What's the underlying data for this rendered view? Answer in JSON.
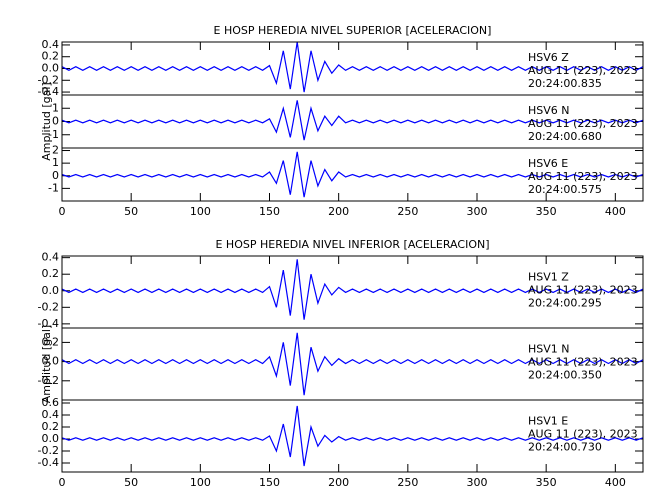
{
  "chart_data": [
    {
      "type": "line",
      "title": "E HOSP HEREDIA NIVEL SUPERIOR [ACELERACION]",
      "ylabel": "Amplitud [gal]",
      "xlim": [
        0,
        420
      ],
      "xticks": [
        0,
        50,
        100,
        150,
        200,
        250,
        300,
        350,
        400
      ],
      "color": "#0000ff",
      "x": [
        0,
        5,
        10,
        15,
        20,
        25,
        30,
        35,
        40,
        45,
        50,
        55,
        60,
        65,
        70,
        75,
        80,
        85,
        90,
        95,
        100,
        105,
        110,
        115,
        120,
        125,
        130,
        135,
        140,
        145,
        150,
        155,
        160,
        165,
        170,
        175,
        180,
        185,
        190,
        195,
        200,
        205,
        210,
        215,
        220,
        225,
        230,
        235,
        240,
        245,
        250,
        255,
        260,
        265,
        270,
        275,
        280,
        285,
        290,
        295,
        300,
        305,
        310,
        315,
        320,
        325,
        330,
        335,
        340,
        345,
        350,
        355,
        360,
        365,
        370,
        375,
        380,
        385,
        390,
        395,
        400,
        405,
        410,
        415,
        420
      ],
      "panels": [
        {
          "station": "HSV6   Z",
          "date": "AUG 11 (223), 2023",
          "time": "20:24:00.835",
          "ylim": [
            -0.45,
            0.45
          ],
          "yticks": [
            -0.4,
            -0.2,
            {
              "value": 0,
              "label": "0.0"
            },
            0.2,
            0.4
          ],
          "values": [
            0.03,
            -0.03,
            0.03,
            -0.03,
            0.03,
            -0.03,
            0.03,
            -0.03,
            0.03,
            -0.03,
            0.03,
            -0.03,
            0.03,
            -0.03,
            0.03,
            -0.03,
            0.03,
            -0.03,
            0.03,
            -0.03,
            0.03,
            -0.03,
            0.03,
            -0.03,
            0.03,
            -0.03,
            0.03,
            -0.03,
            0.03,
            -0.03,
            0.05,
            -0.25,
            0.3,
            -0.35,
            0.45,
            -0.4,
            0.3,
            -0.2,
            0.12,
            -0.08,
            0.06,
            -0.03,
            0.03,
            -0.03,
            0.03,
            -0.03,
            0.03,
            -0.03,
            0.03,
            -0.03,
            0.03,
            -0.03,
            0.03,
            -0.03,
            0.03,
            -0.03,
            0.03,
            -0.03,
            0.03,
            -0.03,
            0.03,
            -0.03,
            0.03,
            -0.03,
            0.03,
            -0.03,
            0.03,
            -0.03,
            0.03,
            -0.03,
            0.03,
            -0.03,
            0.03,
            -0.03,
            0.03,
            -0.03,
            0.03,
            -0.03,
            0.03,
            -0.03,
            0.03,
            -0.03,
            0.03,
            -0.03,
            0.03
          ]
        },
        {
          "station": "HSV6   N",
          "date": "AUG 11 (223), 2023",
          "time": "20:24:00.680",
          "ylim": [
            -2,
            2
          ],
          "yticks": [
            -1,
            0,
            1
          ],
          "values": [
            0.1,
            -0.1,
            0.1,
            -0.1,
            0.1,
            -0.1,
            0.1,
            -0.1,
            0.1,
            -0.1,
            0.1,
            -0.1,
            0.1,
            -0.1,
            0.1,
            -0.1,
            0.1,
            -0.1,
            0.1,
            -0.1,
            0.1,
            -0.1,
            0.1,
            -0.1,
            0.1,
            -0.1,
            0.1,
            -0.1,
            0.1,
            -0.1,
            0.2,
            -0.8,
            1.0,
            -1.2,
            1.6,
            -1.4,
            1.0,
            -0.7,
            0.4,
            -0.3,
            0.4,
            -0.1,
            0.1,
            -0.1,
            0.1,
            -0.1,
            0.1,
            -0.1,
            0.1,
            -0.1,
            0.1,
            -0.1,
            0.1,
            -0.1,
            0.1,
            -0.1,
            0.1,
            -0.1,
            0.1,
            -0.1,
            0.1,
            -0.1,
            0.1,
            -0.1,
            0.1,
            -0.1,
            0.1,
            -0.1,
            0.1,
            -0.1,
            0.1,
            -0.1,
            0.1,
            -0.1,
            0.1,
            -0.1,
            0.1,
            -0.1,
            0.1,
            -0.1,
            0.1,
            -0.1,
            0.1,
            -0.1,
            0.1
          ]
        },
        {
          "station": "HSV6   E",
          "date": "AUG 11 (223), 2023",
          "time": "20:24:00.575",
          "ylim": [
            -2,
            2.2
          ],
          "yticks": [
            -1,
            0,
            1,
            2
          ],
          "values": [
            0.1,
            -0.1,
            0.1,
            -0.1,
            0.1,
            -0.1,
            0.1,
            -0.1,
            0.1,
            -0.1,
            0.1,
            -0.1,
            0.1,
            -0.1,
            0.1,
            -0.1,
            0.1,
            -0.1,
            0.1,
            -0.1,
            0.1,
            -0.1,
            0.1,
            -0.1,
            0.1,
            -0.1,
            0.1,
            -0.1,
            0.1,
            -0.1,
            0.3,
            -0.6,
            1.2,
            -1.5,
            1.9,
            -1.7,
            1.2,
            -0.8,
            0.5,
            -0.4,
            0.3,
            -0.1,
            0.1,
            -0.1,
            0.1,
            -0.1,
            0.1,
            -0.1,
            0.1,
            -0.1,
            0.1,
            -0.1,
            0.1,
            -0.1,
            0.1,
            -0.1,
            0.1,
            -0.1,
            0.1,
            -0.1,
            0.1,
            -0.1,
            0.1,
            -0.1,
            0.1,
            -0.1,
            0.1,
            -0.1,
            0.1,
            -0.1,
            0.1,
            -0.1,
            0.1,
            -0.1,
            0.1,
            -0.1,
            0.1,
            -0.1,
            0.1,
            -0.1,
            0.1,
            -0.1,
            0.1,
            -0.1,
            0.1
          ]
        }
      ]
    },
    {
      "type": "line",
      "title": "E HOSP HEREDIA NIVEL INFERIOR [ACELERACION]",
      "ylabel": "Amplitud [gal]",
      "xlim": [
        0,
        420
      ],
      "xticks": [
        0,
        50,
        100,
        150,
        200,
        250,
        300,
        350,
        400
      ],
      "color": "#0000ff",
      "x": [
        0,
        5,
        10,
        15,
        20,
        25,
        30,
        35,
        40,
        45,
        50,
        55,
        60,
        65,
        70,
        75,
        80,
        85,
        90,
        95,
        100,
        105,
        110,
        115,
        120,
        125,
        130,
        135,
        140,
        145,
        150,
        155,
        160,
        165,
        170,
        175,
        180,
        185,
        190,
        195,
        200,
        205,
        210,
        215,
        220,
        225,
        230,
        235,
        240,
        245,
        250,
        255,
        260,
        265,
        270,
        275,
        280,
        285,
        290,
        295,
        300,
        305,
        310,
        315,
        320,
        325,
        330,
        335,
        340,
        345,
        350,
        355,
        360,
        365,
        370,
        375,
        380,
        385,
        390,
        395,
        400,
        405,
        410,
        415,
        420
      ],
      "panels": [
        {
          "station": "HSV1   Z",
          "date": "AUG 11 (223), 2023",
          "time": "20:24:00.295",
          "ylim": [
            -0.45,
            0.42
          ],
          "yticks": [
            -0.4,
            -0.2,
            {
              "value": 0,
              "label": "0.0"
            },
            0.2,
            0.4
          ],
          "values": [
            0.02,
            -0.02,
            0.02,
            -0.02,
            0.02,
            -0.02,
            0.02,
            -0.02,
            0.02,
            -0.02,
            0.02,
            -0.02,
            0.02,
            -0.02,
            0.02,
            -0.02,
            0.02,
            -0.02,
            0.02,
            -0.02,
            0.02,
            -0.02,
            0.02,
            -0.02,
            0.02,
            -0.02,
            0.02,
            -0.02,
            0.02,
            -0.02,
            0.05,
            -0.2,
            0.25,
            -0.3,
            0.38,
            -0.35,
            0.2,
            -0.15,
            0.08,
            -0.05,
            0.04,
            -0.02,
            0.02,
            -0.02,
            0.02,
            -0.02,
            0.02,
            -0.02,
            0.02,
            -0.02,
            0.02,
            -0.02,
            0.02,
            -0.02,
            0.02,
            -0.02,
            0.02,
            -0.02,
            0.02,
            -0.02,
            0.02,
            -0.02,
            0.02,
            -0.02,
            0.02,
            -0.02,
            0.02,
            -0.02,
            0.02,
            -0.02,
            0.02,
            -0.02,
            0.02,
            -0.02,
            0.02,
            -0.02,
            0.02,
            -0.02,
            0.02,
            -0.02,
            0.02,
            -0.02,
            0.02,
            -0.02,
            0.02
          ]
        },
        {
          "station": "HSV1   N",
          "date": "AUG 11 (223), 2023",
          "time": "20:24:00.350",
          "ylim": [
            -0.4,
            0.35
          ],
          "yticks": [
            -0.2,
            {
              "value": 0,
              "label": "0.0"
            },
            0.2
          ],
          "values": [
            0.02,
            -0.02,
            0.02,
            -0.02,
            0.02,
            -0.02,
            0.02,
            -0.02,
            0.02,
            -0.02,
            0.02,
            -0.02,
            0.02,
            -0.02,
            0.02,
            -0.02,
            0.02,
            -0.02,
            0.02,
            -0.02,
            0.02,
            -0.02,
            0.02,
            -0.02,
            0.02,
            -0.02,
            0.02,
            -0.02,
            0.02,
            -0.02,
            0.05,
            -0.15,
            0.2,
            -0.25,
            0.3,
            -0.35,
            0.15,
            -0.1,
            0.05,
            -0.04,
            0.03,
            -0.02,
            0.02,
            -0.02,
            0.02,
            -0.02,
            0.02,
            -0.02,
            0.02,
            -0.02,
            0.02,
            -0.02,
            0.02,
            -0.02,
            0.02,
            -0.02,
            0.02,
            -0.02,
            0.02,
            -0.02,
            0.02,
            -0.02,
            0.02,
            -0.02,
            0.02,
            -0.02,
            0.02,
            -0.02,
            0.02,
            -0.02,
            0.02,
            -0.02,
            0.02,
            -0.02,
            0.02,
            -0.02,
            0.02,
            -0.02,
            0.02,
            -0.02,
            0.02,
            -0.02,
            0.02,
            -0.02,
            0.02
          ]
        },
        {
          "station": "HSV1   E",
          "date": "AUG 11 (223), 2023",
          "time": "20:24:00.730",
          "ylim": [
            -0.55,
            0.65
          ],
          "yticks": [
            -0.4,
            -0.2,
            {
              "value": 0,
              "label": "0.0"
            },
            0.2,
            0.4,
            0.6
          ],
          "values": [
            0.02,
            -0.02,
            0.02,
            -0.02,
            0.02,
            -0.02,
            0.02,
            -0.02,
            0.02,
            -0.02,
            0.02,
            -0.02,
            0.02,
            -0.02,
            0.02,
            -0.02,
            0.02,
            -0.02,
            0.02,
            -0.02,
            0.02,
            -0.02,
            0.02,
            -0.02,
            0.02,
            -0.02,
            0.02,
            -0.02,
            0.02,
            -0.02,
            0.05,
            -0.2,
            0.25,
            -0.3,
            0.55,
            -0.45,
            0.2,
            -0.12,
            0.06,
            -0.05,
            0.04,
            -0.02,
            0.02,
            -0.02,
            0.02,
            -0.02,
            0.02,
            -0.02,
            0.02,
            -0.02,
            0.02,
            -0.02,
            0.02,
            -0.02,
            0.02,
            -0.02,
            0.02,
            -0.02,
            0.02,
            -0.02,
            0.02,
            -0.02,
            0.02,
            -0.02,
            0.02,
            -0.02,
            0.02,
            -0.02,
            0.02,
            -0.02,
            0.02,
            -0.02,
            0.02,
            -0.02,
            0.02,
            -0.02,
            0.02,
            -0.02,
            0.02,
            -0.02,
            0.02,
            -0.02,
            0.02,
            -0.02,
            0.02
          ]
        }
      ]
    }
  ]
}
